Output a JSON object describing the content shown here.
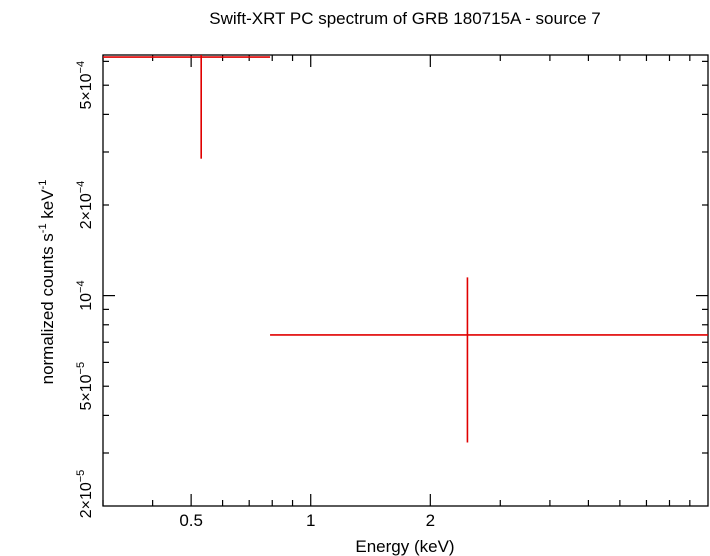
{
  "chart_data": {
    "type": "scatter",
    "title": "Swift-XRT PC spectrum of GRB 180715A - source 7",
    "xlabel": "Energy (keV)",
    "ylabel_parts": {
      "base": "normalized counts s",
      "mid": " keV",
      "exp": "-1"
    },
    "x_scale": "log",
    "y_scale": "log",
    "xlim": [
      0.3,
      10
    ],
    "ylim": [
      2e-05,
      0.00063
    ],
    "x_ticks": [
      {
        "value": 0.5,
        "label": "0.5"
      },
      {
        "value": 1,
        "label": "1"
      },
      {
        "value": 2,
        "label": "2"
      }
    ],
    "y_ticks": [
      {
        "value": 2e-05,
        "mant": "2×10",
        "exp": "−5"
      },
      {
        "value": 5e-05,
        "mant": "5×10",
        "exp": "−5"
      },
      {
        "value": 0.0001,
        "mant": "10",
        "exp": "−4"
      },
      {
        "value": 0.0002,
        "mant": "2×10",
        "exp": "−4"
      },
      {
        "value": 0.0005,
        "mant": "5×10",
        "exp": "−4"
      }
    ],
    "series": [
      {
        "color": "#e00000",
        "points": [
          {
            "x": 0.53,
            "x_lo": 0.3,
            "x_hi": 0.79,
            "y": 0.00062,
            "y_lo": 0.000285,
            "y_hi": 0.00063
          },
          {
            "x": 2.48,
            "x_lo": 0.79,
            "x_hi": 10,
            "y": 7.4e-05,
            "y_lo": 3.25e-05,
            "y_hi": 0.000115
          }
        ]
      }
    ]
  }
}
